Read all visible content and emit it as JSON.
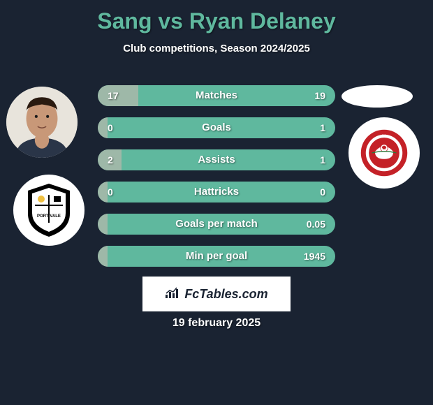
{
  "title": "Sang vs Ryan Delaney",
  "subtitle": "Club competitions, Season 2024/2025",
  "title_color": "#5fb89e",
  "background_color": "#1a2332",
  "text_color": "#ffffff",
  "stat_bar_right_color": "#5fb89e",
  "stat_bar_left_color": "#9eb8a8",
  "stat_bar_height": 30,
  "stat_bar_radius": 15,
  "stats": [
    {
      "label": "Matches",
      "left_val": "17",
      "right_val": "19",
      "left_pct": 17
    },
    {
      "label": "Goals",
      "left_val": "0",
      "right_val": "1",
      "left_pct": 4
    },
    {
      "label": "Assists",
      "left_val": "2",
      "right_val": "1",
      "left_pct": 10
    },
    {
      "label": "Hattricks",
      "left_val": "0",
      "right_val": "0",
      "left_pct": 4
    },
    {
      "label": "Goals per match",
      "left_val": "",
      "right_val": "0.05",
      "left_pct": 4
    },
    {
      "label": "Min per goal",
      "left_val": "",
      "right_val": "1945",
      "left_pct": 4
    }
  ],
  "brand_text": "FcTables.com",
  "date": "19 february 2025",
  "player1_avatar_bg": "#e8e4dc",
  "player2_avatar_bg": "#ffffff",
  "club1_shield_colors": {
    "bg": "#ffffff",
    "outer": "#000000",
    "inner": "#ffffff",
    "accent": "#f0c040"
  },
  "club2_shield_colors": {
    "bg": "#ffffff",
    "outer": "#c42127",
    "inner": "#ffffff",
    "ball": "#ffffff"
  }
}
